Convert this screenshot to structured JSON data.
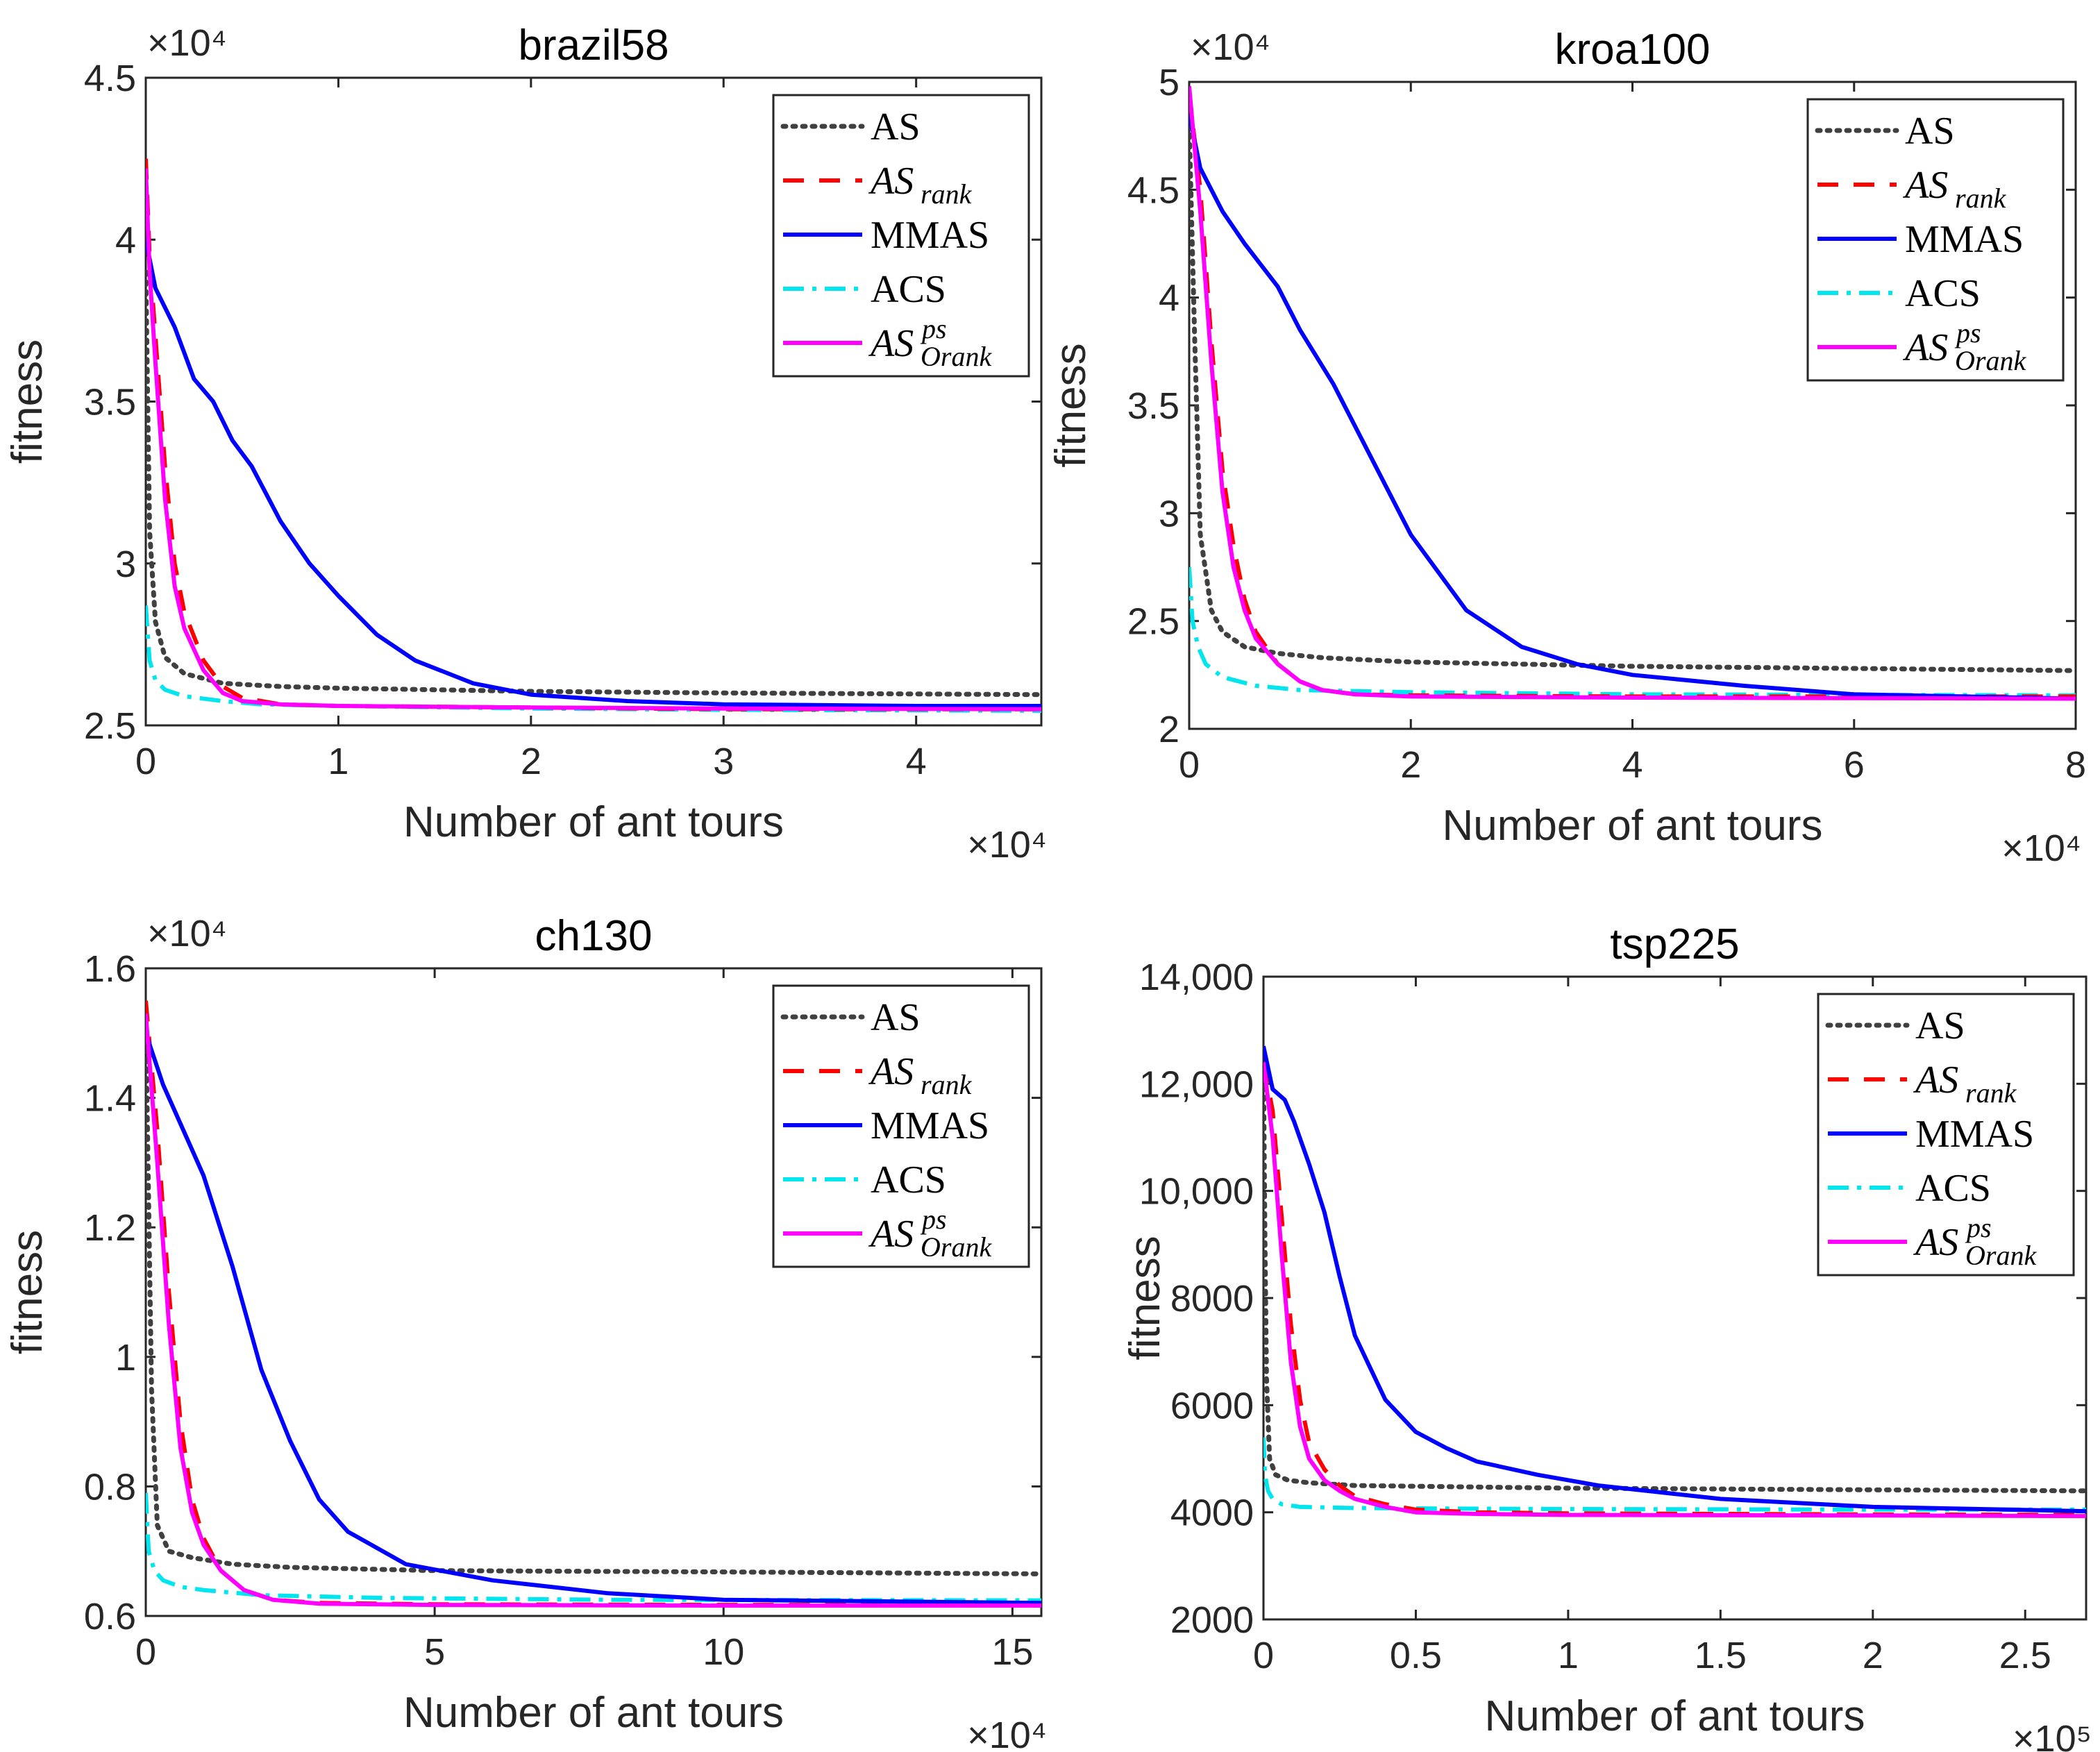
{
  "chart_data": [
    {
      "type": "line",
      "title": "brazil58",
      "xlabel": "Number of ant tours",
      "ylabel": "fitness",
      "x_exponent": "×10⁴",
      "y_exponent": "×10⁴",
      "xlim": [
        0,
        4.65
      ],
      "ylim": [
        2.5,
        4.5
      ],
      "xticks": [
        0,
        1,
        2,
        3,
        4
      ],
      "xtick_labels": [
        "0",
        "1",
        "2",
        "3",
        "4"
      ],
      "yticks": [
        2.5,
        3,
        3.5,
        4,
        4.5
      ],
      "ytick_labels": [
        "2.5",
        "3",
        "3.5",
        "4",
        "4.5"
      ],
      "legend_position": "top-right",
      "series": [
        {
          "name": "AS",
          "color": "#404040",
          "style": "dotted",
          "x": [
            0,
            0.02,
            0.05,
            0.1,
            0.2,
            0.4,
            0.7,
            1.0,
            2.0,
            3.0,
            4.65
          ],
          "y": [
            3.9,
            3.1,
            2.82,
            2.71,
            2.66,
            2.63,
            2.62,
            2.615,
            2.605,
            2.6,
            2.595
          ]
        },
        {
          "name": "AS_rank",
          "color": "#ff0000",
          "style": "dashed",
          "x": [
            0,
            0.02,
            0.05,
            0.1,
            0.15,
            0.2,
            0.3,
            0.4,
            0.5,
            0.7,
            1.0,
            2.0,
            3.0,
            4.65
          ],
          "y": [
            4.25,
            3.95,
            3.7,
            3.3,
            3.0,
            2.85,
            2.7,
            2.62,
            2.585,
            2.565,
            2.56,
            2.555,
            2.55,
            2.55
          ]
        },
        {
          "name": "MMAS",
          "color": "#0000ff",
          "style": "solid",
          "x": [
            0,
            0.05,
            0.15,
            0.25,
            0.35,
            0.45,
            0.55,
            0.7,
            0.85,
            1.0,
            1.2,
            1.4,
            1.7,
            2.0,
            2.5,
            3.0,
            4.0,
            4.65
          ],
          "y": [
            4.0,
            3.85,
            3.73,
            3.57,
            3.5,
            3.38,
            3.3,
            3.13,
            3.0,
            2.9,
            2.78,
            2.7,
            2.63,
            2.595,
            2.575,
            2.565,
            2.56,
            2.56
          ]
        },
        {
          "name": "ACS",
          "color": "#00e5ee",
          "style": "dashdot",
          "x": [
            0,
            0.02,
            0.05,
            0.1,
            0.2,
            0.4,
            0.6,
            1.0,
            2.0,
            3.0,
            4.65
          ],
          "y": [
            2.87,
            2.7,
            2.64,
            2.61,
            2.59,
            2.575,
            2.565,
            2.56,
            2.552,
            2.548,
            2.545
          ]
        },
        {
          "name": "AS_Orank^ps",
          "color": "#ff00ff",
          "style": "solid",
          "x": [
            0,
            0.02,
            0.05,
            0.1,
            0.15,
            0.2,
            0.3,
            0.4,
            0.5,
            0.7,
            1.0,
            2.0,
            3.0,
            4.65
          ],
          "y": [
            4.22,
            3.9,
            3.62,
            3.2,
            2.93,
            2.8,
            2.67,
            2.6,
            2.575,
            2.565,
            2.56,
            2.555,
            2.552,
            2.55
          ]
        }
      ]
    },
    {
      "type": "line",
      "title": "kroa100",
      "xlabel": "Number of ant tours",
      "ylabel": "fitness",
      "x_exponent": "×10⁴",
      "y_exponent": "×10⁴",
      "xlim": [
        0,
        8
      ],
      "ylim": [
        2,
        5
      ],
      "xticks": [
        0,
        2,
        4,
        6,
        8
      ],
      "xtick_labels": [
        "0",
        "2",
        "4",
        "6",
        "8"
      ],
      "yticks": [
        2,
        2.5,
        3,
        3.5,
        4,
        4.5,
        5
      ],
      "ytick_labels": [
        "2",
        "2.5",
        "3",
        "3.5",
        "4",
        "4.5",
        "5"
      ],
      "legend_position": "top-right",
      "series": [
        {
          "name": "AS",
          "color": "#404040",
          "style": "dotted",
          "x": [
            0,
            0.05,
            0.1,
            0.2,
            0.3,
            0.5,
            0.8,
            1.2,
            2.0,
            4.0,
            6.0,
            8.0
          ],
          "y": [
            4.8,
            3.8,
            2.9,
            2.55,
            2.45,
            2.38,
            2.35,
            2.33,
            2.31,
            2.29,
            2.28,
            2.27
          ]
        },
        {
          "name": "AS_rank",
          "color": "#ff0000",
          "style": "dashed",
          "x": [
            0,
            0.1,
            0.2,
            0.3,
            0.4,
            0.5,
            0.6,
            0.8,
            1.0,
            1.2,
            1.5,
            2.0,
            4.0,
            8.0
          ],
          "y": [
            4.95,
            4.5,
            3.8,
            3.2,
            2.85,
            2.6,
            2.45,
            2.3,
            2.22,
            2.18,
            2.16,
            2.155,
            2.15,
            2.15
          ]
        },
        {
          "name": "MMAS",
          "color": "#0000ff",
          "style": "solid",
          "x": [
            0,
            0.1,
            0.3,
            0.5,
            0.8,
            1.0,
            1.3,
            1.6,
            2.0,
            2.5,
            3.0,
            3.5,
            4.0,
            5.0,
            6.0,
            8.0
          ],
          "y": [
            4.85,
            4.6,
            4.4,
            4.25,
            4.05,
            3.85,
            3.6,
            3.3,
            2.9,
            2.55,
            2.38,
            2.3,
            2.25,
            2.2,
            2.16,
            2.14
          ]
        },
        {
          "name": "ACS",
          "color": "#00e5ee",
          "style": "dashdot",
          "x": [
            0,
            0.03,
            0.08,
            0.15,
            0.3,
            0.6,
            1.0,
            2.0,
            4.0,
            8.0
          ],
          "y": [
            2.75,
            2.5,
            2.38,
            2.3,
            2.24,
            2.2,
            2.18,
            2.17,
            2.16,
            2.155
          ]
        },
        {
          "name": "AS_Orank^ps",
          "color": "#ff00ff",
          "style": "solid",
          "x": [
            0,
            0.1,
            0.2,
            0.3,
            0.4,
            0.5,
            0.6,
            0.8,
            1.0,
            1.2,
            1.5,
            2.0,
            4.0,
            8.0
          ],
          "y": [
            4.98,
            4.4,
            3.7,
            3.1,
            2.75,
            2.55,
            2.42,
            2.3,
            2.22,
            2.18,
            2.16,
            2.15,
            2.145,
            2.14
          ]
        }
      ]
    },
    {
      "type": "line",
      "title": "ch130",
      "xlabel": "Number of ant tours",
      "ylabel": "fitness",
      "x_exponent": "×10⁴",
      "y_exponent": "×10⁴",
      "xlim": [
        0,
        15.5
      ],
      "ylim": [
        0.6,
        1.6
      ],
      "xticks": [
        0,
        5,
        10,
        15
      ],
      "xtick_labels": [
        "0",
        "5",
        "10",
        "15"
      ],
      "yticks": [
        0.6,
        0.8,
        1,
        1.2,
        1.4,
        1.6
      ],
      "ytick_labels": [
        "0.6",
        "0.8",
        "1",
        "1.2",
        "1.4",
        "1.6"
      ],
      "legend_position": "top-right",
      "series": [
        {
          "name": "AS",
          "color": "#404040",
          "style": "dotted",
          "x": [
            0,
            0.1,
            0.2,
            0.4,
            0.8,
            1.5,
            2.5,
            5.0,
            10.0,
            15.5
          ],
          "y": [
            1.52,
            0.95,
            0.74,
            0.7,
            0.69,
            0.68,
            0.675,
            0.67,
            0.668,
            0.665
          ]
        },
        {
          "name": "AS_rank",
          "color": "#ff0000",
          "style": "dashed",
          "x": [
            0,
            0.2,
            0.4,
            0.6,
            0.8,
            1.0,
            1.3,
            1.7,
            2.2,
            3.0,
            5.0,
            10.0,
            15.5
          ],
          "y": [
            1.55,
            1.35,
            1.1,
            0.9,
            0.78,
            0.72,
            0.67,
            0.64,
            0.625,
            0.62,
            0.618,
            0.617,
            0.617
          ]
        },
        {
          "name": "MMAS",
          "color": "#0000ff",
          "style": "solid",
          "x": [
            0,
            0.3,
            0.7,
            1.0,
            1.5,
            2.0,
            2.5,
            3.0,
            3.5,
            4.5,
            6.0,
            8.0,
            10.0,
            15.5
          ],
          "y": [
            1.5,
            1.42,
            1.34,
            1.28,
            1.14,
            0.98,
            0.87,
            0.78,
            0.73,
            0.68,
            0.655,
            0.635,
            0.625,
            0.62
          ]
        },
        {
          "name": "ACS",
          "color": "#00e5ee",
          "style": "dashdot",
          "x": [
            0,
            0.05,
            0.15,
            0.3,
            0.6,
            1.0,
            2.0,
            4.0,
            8.0,
            15.5
          ],
          "y": [
            0.79,
            0.7,
            0.67,
            0.655,
            0.645,
            0.64,
            0.632,
            0.628,
            0.625,
            0.624
          ]
        },
        {
          "name": "AS_Orank^ps",
          "color": "#ff00ff",
          "style": "solid",
          "x": [
            0,
            0.2,
            0.4,
            0.6,
            0.8,
            1.0,
            1.3,
            1.7,
            2.2,
            3.0,
            5.0,
            10.0,
            15.5
          ],
          "y": [
            1.53,
            1.3,
            1.05,
            0.86,
            0.76,
            0.71,
            0.67,
            0.64,
            0.625,
            0.619,
            0.617,
            0.616,
            0.616
          ]
        }
      ]
    },
    {
      "type": "line",
      "title": "tsp225",
      "xlabel": "Number of ant tours",
      "ylabel": "fitness",
      "x_exponent": "×10⁵",
      "y_exponent": "",
      "xlim": [
        0,
        2.7
      ],
      "ylim": [
        2000,
        14000
      ],
      "xticks": [
        0,
        0.5,
        1,
        1.5,
        2,
        2.5
      ],
      "xtick_labels": [
        "0",
        "0.5",
        "1",
        "1.5",
        "2",
        "2.5"
      ],
      "yticks": [
        2000,
        4000,
        6000,
        8000,
        10000,
        12000,
        14000
      ],
      "ytick_labels": [
        "2000",
        "4000",
        "6000",
        "8000",
        "10,000",
        "12,000",
        "14,000"
      ],
      "legend_position": "top-right",
      "series": [
        {
          "name": "AS",
          "color": "#404040",
          "style": "dotted",
          "x": [
            0,
            0.005,
            0.01,
            0.02,
            0.04,
            0.08,
            0.15,
            0.3,
            1.0,
            2.0,
            2.7
          ],
          "y": [
            12300,
            9000,
            6500,
            5000,
            4700,
            4600,
            4550,
            4500,
            4450,
            4420,
            4400
          ]
        },
        {
          "name": "AS_rank",
          "color": "#ff0000",
          "style": "dashed",
          "x": [
            0,
            0.03,
            0.06,
            0.09,
            0.12,
            0.15,
            0.2,
            0.25,
            0.3,
            0.4,
            0.5,
            0.7,
            1.0,
            2.0,
            2.7
          ],
          "y": [
            12400,
            11500,
            9500,
            7500,
            6100,
            5300,
            4800,
            4500,
            4300,
            4150,
            4050,
            4000,
            3980,
            3960,
            3950
          ]
        },
        {
          "name": "MMAS",
          "color": "#0000ff",
          "style": "solid",
          "x": [
            0,
            0.03,
            0.07,
            0.1,
            0.15,
            0.2,
            0.25,
            0.3,
            0.35,
            0.4,
            0.5,
            0.6,
            0.7,
            0.9,
            1.1,
            1.5,
            2.0,
            2.7
          ],
          "y": [
            12700,
            11900,
            11700,
            11300,
            10500,
            9600,
            8400,
            7300,
            6700,
            6100,
            5500,
            5200,
            4950,
            4700,
            4500,
            4250,
            4100,
            4020
          ]
        },
        {
          "name": "ACS",
          "color": "#00e5ee",
          "style": "dashdot",
          "x": [
            0,
            0.005,
            0.015,
            0.03,
            0.06,
            0.12,
            0.3,
            0.6,
            1.0,
            2.0,
            2.7
          ],
          "y": [
            5400,
            4700,
            4400,
            4250,
            4150,
            4100,
            4080,
            4070,
            4060,
            4050,
            4050
          ]
        },
        {
          "name": "AS_Orank^ps",
          "color": "#ff00ff",
          "style": "solid",
          "x": [
            0,
            0.03,
            0.06,
            0.09,
            0.12,
            0.15,
            0.2,
            0.25,
            0.3,
            0.4,
            0.5,
            0.7,
            1.0,
            2.0,
            2.7
          ],
          "y": [
            12400,
            11000,
            8800,
            6800,
            5600,
            5000,
            4600,
            4400,
            4250,
            4100,
            4000,
            3970,
            3950,
            3940,
            3930
          ]
        }
      ]
    }
  ],
  "legend_labels": {
    "as": "AS",
    "as_rank_main": "AS",
    "as_rank_sub": "rank",
    "mmas": "MMAS",
    "acs": "ACS",
    "asps_main": "AS",
    "asps_sup": "ps",
    "asps_sub": "Orank"
  }
}
